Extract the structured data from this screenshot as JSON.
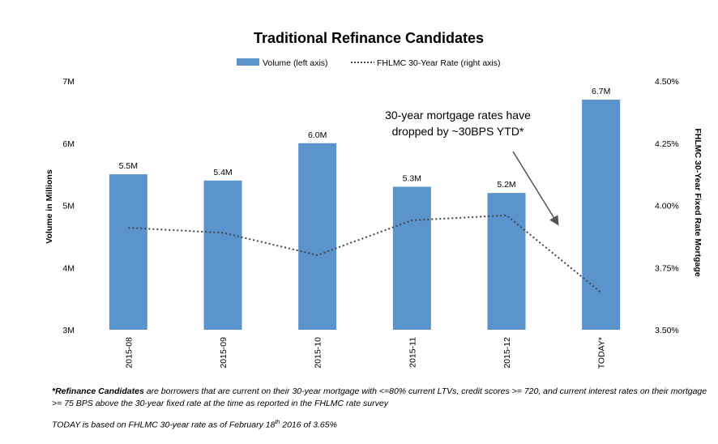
{
  "chart_data": {
    "type": "bar",
    "title": "Traditional Refinance Candidates",
    "categories": [
      "2015-08",
      "2015-09",
      "2015-10",
      "2015-11",
      "2015-12",
      "TODAY*"
    ],
    "series": [
      {
        "name": "Volume (left axis)",
        "axis": "left",
        "kind": "bar",
        "values": [
          5.5,
          5.4,
          6.0,
          5.3,
          5.2,
          6.7
        ],
        "labels": [
          "5.5M",
          "5.4M",
          "6.0M",
          "5.3M",
          "5.2M",
          "6.7M"
        ],
        "color": "#5b93cd"
      },
      {
        "name": "FHLMC 30-Year Rate (right axis)",
        "axis": "right",
        "kind": "dotted-line",
        "values": [
          3.91,
          3.89,
          3.8,
          3.94,
          3.96,
          3.65
        ],
        "color": "#444444"
      }
    ],
    "ylabel_left": "Volume in Millions",
    "ylabel_right": "FHLMC 30-Year Fixed Rate Mortgage",
    "ylim_left": [
      3,
      7
    ],
    "yticks_left": [
      "3M",
      "4M",
      "5M",
      "6M",
      "7M"
    ],
    "ylim_right": [
      3.5,
      4.5
    ],
    "yticks_right": [
      "3.50%",
      "3.75%",
      "4.00%",
      "4.25%",
      "4.50%"
    ],
    "legend_position": "top-center",
    "annotation": {
      "line1": "30-year mortgage rates have",
      "line2": "dropped by ~30BPS YTD*",
      "points_to_category": "TODAY*"
    }
  },
  "footnotes": {
    "candidates_term": "*Refinance Candidates",
    "candidates_text": " are borrowers that are current on their 30-year  mortgage with <=80% current LTVs, credit scores >= 720, and current interest rates on their mortgage >= 75 BPS above the 30-year fixed rate at the time as reported in the FHLMC rate survey",
    "today_prefix": "TODAY is based on FHLMC 30-year rate as of February 18",
    "today_sup": "th",
    "today_suffix": " 2016 of 3.65%"
  }
}
